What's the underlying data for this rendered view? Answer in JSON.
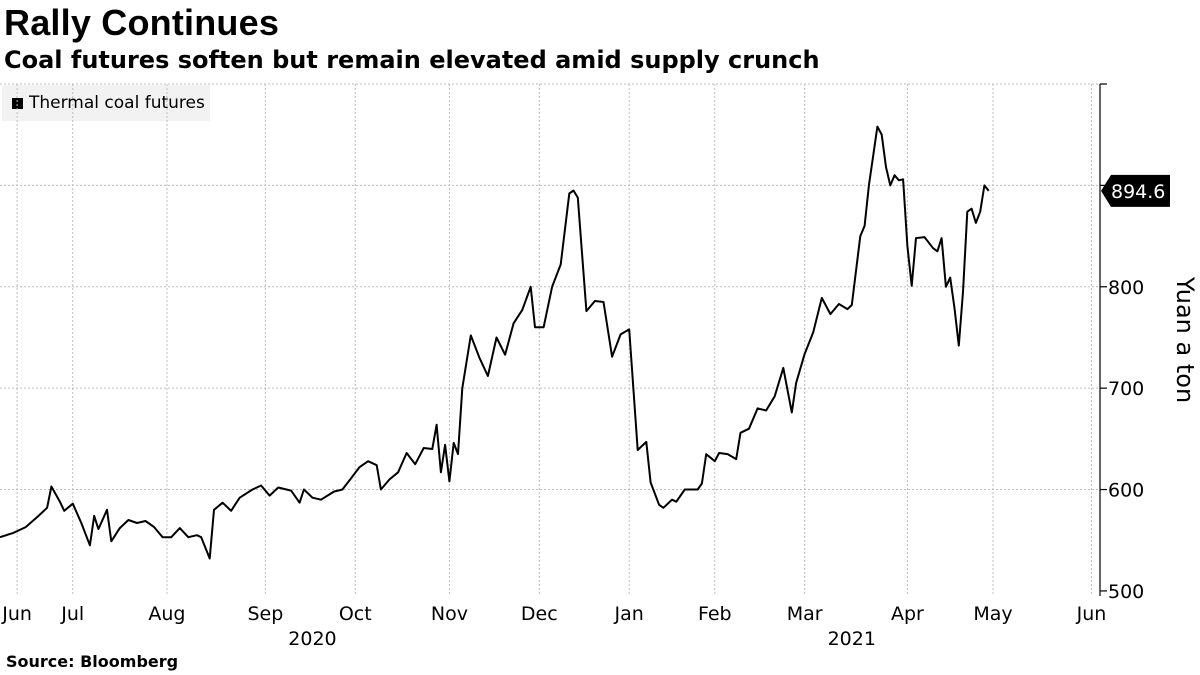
{
  "chart_data": {
    "type": "line",
    "title": "Rally Continues",
    "subtitle": "Coal futures soften but remain elevated amid supply crunch",
    "source": "Source: Bloomberg",
    "ylabel": "Yuan a ton",
    "ylim": [
      495,
      1000
    ],
    "yticks": [
      500,
      600,
      700,
      800,
      900,
      1000
    ],
    "ytick_labels": [
      "500",
      "600",
      "700",
      "800",
      "",
      ""
    ],
    "grid": true,
    "legend_position": "top-left",
    "x_start_index": 0,
    "x_end_index": 257,
    "month_ticks": [
      {
        "label": "Jun",
        "index": 4
      },
      {
        "label": "Jul",
        "index": 17
      },
      {
        "label": "Aug",
        "index": 39
      },
      {
        "label": "Sep",
        "index": 62
      },
      {
        "label": "Oct",
        "index": 83
      },
      {
        "label": "Nov",
        "index": 105
      },
      {
        "label": "Dec",
        "index": 126
      },
      {
        "label": "Jan",
        "index": 147
      },
      {
        "label": "Feb",
        "index": 167
      },
      {
        "label": "Mar",
        "index": 188
      },
      {
        "label": "Apr",
        "index": 212
      },
      {
        "label": "May",
        "index": 232
      },
      {
        "label": "Jun",
        "index": 255
      }
    ],
    "year_labels": [
      {
        "label": "2020",
        "index": 73
      },
      {
        "label": "2021",
        "index": 199
      }
    ],
    "last_value_label": "894.6",
    "series": [
      {
        "name": "Thermal coal futures",
        "color": "#000000",
        "points": [
          [
            0,
            553
          ],
          [
            3,
            557
          ],
          [
            6,
            563
          ],
          [
            9,
            574
          ],
          [
            11,
            582
          ],
          [
            12,
            603
          ],
          [
            14,
            588
          ],
          [
            15,
            579
          ],
          [
            17,
            586
          ],
          [
            19,
            567
          ],
          [
            21,
            545
          ],
          [
            22,
            574
          ],
          [
            23,
            561
          ],
          [
            25,
            580
          ],
          [
            26,
            549
          ],
          [
            28,
            562
          ],
          [
            30,
            570
          ],
          [
            32,
            567
          ],
          [
            34,
            569
          ],
          [
            36,
            563
          ],
          [
            38,
            553
          ],
          [
            40,
            553
          ],
          [
            42,
            562
          ],
          [
            44,
            553
          ],
          [
            46,
            555
          ],
          [
            47,
            553
          ],
          [
            49,
            532
          ],
          [
            50,
            580
          ],
          [
            52,
            587
          ],
          [
            54,
            579
          ],
          [
            56,
            592
          ],
          [
            59,
            600
          ],
          [
            61,
            604
          ],
          [
            63,
            594
          ],
          [
            65,
            602
          ],
          [
            68,
            599
          ],
          [
            70,
            587
          ],
          [
            71,
            600
          ],
          [
            73,
            592
          ],
          [
            75,
            590
          ],
          [
            78,
            598
          ],
          [
            80,
            600
          ],
          [
            82,
            611
          ],
          [
            84,
            622
          ],
          [
            86,
            628
          ],
          [
            88,
            624
          ],
          [
            89,
            600
          ],
          [
            91,
            610
          ],
          [
            93,
            617
          ],
          [
            95,
            636
          ],
          [
            97,
            625
          ],
          [
            99,
            641
          ],
          [
            101,
            640
          ],
          [
            102,
            664
          ],
          [
            103,
            617
          ],
          [
            104,
            644
          ],
          [
            105,
            608
          ],
          [
            106,
            646
          ],
          [
            107,
            635
          ],
          [
            108,
            700
          ],
          [
            110,
            752
          ],
          [
            112,
            730
          ],
          [
            114,
            712
          ],
          [
            116,
            750
          ],
          [
            118,
            733
          ],
          [
            120,
            764
          ],
          [
            122,
            777
          ],
          [
            124,
            800
          ],
          [
            125,
            760
          ],
          [
            127,
            760
          ],
          [
            129,
            800
          ],
          [
            131,
            822
          ],
          [
            133,
            892
          ],
          [
            134,
            895
          ],
          [
            135,
            888
          ],
          [
            137,
            776
          ],
          [
            139,
            786
          ],
          [
            141,
            785
          ],
          [
            143,
            731
          ],
          [
            145,
            753
          ],
          [
            147,
            758
          ],
          [
            149,
            639
          ],
          [
            151,
            647
          ],
          [
            152,
            607
          ],
          [
            154,
            585
          ],
          [
            155,
            582
          ],
          [
            157,
            590
          ],
          [
            158,
            588
          ],
          [
            160,
            600
          ],
          [
            163,
            600
          ],
          [
            164,
            606
          ],
          [
            165,
            635
          ],
          [
            167,
            628
          ],
          [
            168,
            636
          ],
          [
            170,
            635
          ],
          [
            172,
            630
          ],
          [
            173,
            656
          ],
          [
            175,
            660
          ],
          [
            177,
            680
          ],
          [
            179,
            678
          ],
          [
            181,
            692
          ],
          [
            183,
            720
          ],
          [
            185,
            676
          ],
          [
            186,
            705
          ],
          [
            188,
            734
          ],
          [
            190,
            755
          ],
          [
            192,
            789
          ],
          [
            194,
            773
          ],
          [
            196,
            783
          ],
          [
            198,
            778
          ],
          [
            199,
            782
          ],
          [
            201,
            850
          ],
          [
            202,
            860
          ],
          [
            203,
            900
          ],
          [
            205,
            958
          ],
          [
            206,
            950
          ],
          [
            207,
            918
          ],
          [
            208,
            900
          ],
          [
            209,
            910
          ],
          [
            210,
            905
          ],
          [
            211,
            906
          ],
          [
            212,
            840
          ],
          [
            213,
            801
          ],
          [
            214,
            848
          ],
          [
            216,
            849
          ],
          [
            218,
            838
          ],
          [
            219,
            835
          ],
          [
            220,
            848
          ],
          [
            221,
            800
          ],
          [
            222,
            809
          ],
          [
            223,
            779
          ],
          [
            224,
            742
          ],
          [
            225,
            795
          ],
          [
            226,
            874
          ],
          [
            227,
            877
          ],
          [
            228,
            863
          ],
          [
            229,
            874
          ],
          [
            230,
            900
          ],
          [
            231,
            894.6
          ]
        ]
      }
    ]
  }
}
